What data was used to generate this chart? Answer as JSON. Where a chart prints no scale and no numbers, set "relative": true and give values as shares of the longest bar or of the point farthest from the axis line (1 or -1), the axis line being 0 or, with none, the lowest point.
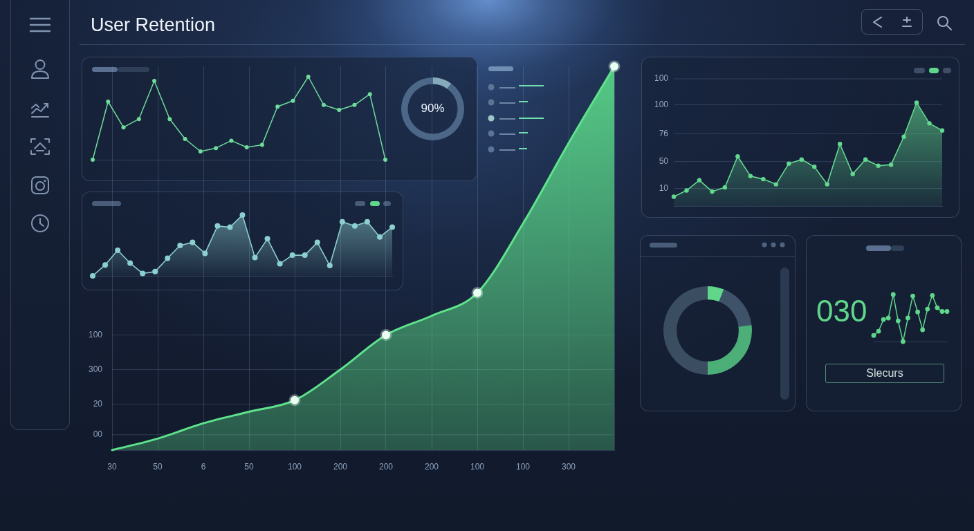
{
  "chart_data": [
    {
      "type": "area",
      "title": "User Retention",
      "relative": true,
      "categories": [
        "30",
        "50",
        "6",
        "50",
        "100",
        "200",
        "200",
        "200",
        "100",
        "100",
        "300",
        null
      ],
      "grid": "x",
      "ref_lines": [
        {
          "axis": "y",
          "value": 0.04
        },
        {
          "axis": "y",
          "value": 0.12
        },
        {
          "axis": "y",
          "value": 0.21
        },
        {
          "axis": "y",
          "value": 0.3
        }
      ],
      "annotations": [
        "00",
        "20",
        "300",
        "100"
      ],
      "series": [
        {
          "color": "#5ee38c",
          "values": [
            0,
            0.03,
            0.07,
            0.1,
            0.13,
            0.21,
            0.3,
            0.35,
            0.41,
            0.59,
            0.8,
            1
          ]
        },
        {
          "type": "scatter",
          "color": "#e9fff1",
          "values": [
            null,
            null,
            null,
            null,
            0.13,
            null,
            0.3,
            null,
            0.41,
            null,
            null,
            1
          ]
        }
      ]
    },
    {
      "type": "line",
      "relative": true,
      "marker": "circle",
      "categories": [
        null,
        null,
        null,
        null,
        null,
        null,
        null,
        null,
        null,
        null,
        null,
        null,
        null,
        null,
        null,
        null,
        null,
        null,
        null,
        null
      ],
      "series": [
        {
          "color": "#6fdc9a",
          "values": [
            0,
            0.7,
            0.39,
            0.49,
            0.95,
            0.49,
            0.25,
            0.1,
            0.14,
            0.23,
            0.15,
            0.18,
            0.64,
            0.71,
            1,
            0.66,
            0.6,
            0.66,
            0.79,
            0
          ]
        }
      ]
    },
    {
      "type": "donut",
      "categories": [
        null,
        null
      ],
      "values": [
        10,
        90
      ],
      "colors": [
        "#86aabb",
        "#4d6788"
      ],
      "annotations": [
        "90%"
      ]
    },
    {
      "type": "area",
      "relative": true,
      "marker": "circle",
      "categories": [
        null,
        null,
        null,
        null,
        null,
        null,
        null,
        null,
        null,
        null,
        null,
        null,
        null,
        null,
        null,
        null,
        null,
        null,
        null,
        null,
        null,
        null
      ],
      "ref_lines": [
        {
          "axis": "y",
          "value": 0.17
        },
        {
          "axis": "y",
          "value": 0.43
        },
        {
          "axis": "y",
          "value": 0.7
        },
        {
          "axis": "y",
          "value": 0.98
        },
        {
          "axis": "y",
          "value": 1.23
        }
      ],
      "annotations": [
        "10",
        "50",
        "76",
        "100",
        "100"
      ],
      "series": [
        {
          "color": "#63d98f",
          "values": [
            0.09,
            0.15,
            0.25,
            0.14,
            0.18,
            0.48,
            0.29,
            0.26,
            0.21,
            0.41,
            0.45,
            0.38,
            0.21,
            0.6,
            0.31,
            0.45,
            0.39,
            0.4,
            0.67,
            1,
            0.8,
            0.73
          ]
        }
      ]
    },
    {
      "type": "area",
      "relative": true,
      "marker": "circle",
      "categories": [
        null,
        null,
        null,
        null,
        null,
        null,
        null,
        null,
        null,
        null,
        null,
        null,
        null,
        null,
        null,
        null,
        null,
        null,
        null,
        null,
        null,
        null,
        null,
        null,
        null
      ],
      "series": [
        {
          "color": "#8ccfcf",
          "values": [
            0,
            0.18,
            0.42,
            0.21,
            0.04,
            0.07,
            0.29,
            0.5,
            0.55,
            0.37,
            0.82,
            0.8,
            1,
            0.3,
            0.61,
            0.2,
            0.34,
            0.34,
            0.55,
            0.17,
            0.89,
            0.82,
            0.89,
            0.64,
            0.8
          ]
        }
      ]
    },
    {
      "type": "donut",
      "categories": [
        null,
        null,
        null,
        null
      ],
      "values": [
        6,
        17,
        27,
        50
      ],
      "colors": [
        "#5fd68a",
        "#3e5369",
        "#4caf78",
        "#3a4d61"
      ]
    },
    {
      "type": "line",
      "relative": true,
      "marker": "circle",
      "title": "030",
      "annotations": [
        "Slecurs"
      ],
      "categories": [
        null,
        null,
        null,
        null,
        null,
        null,
        null,
        null,
        null,
        null,
        null,
        null,
        null,
        null,
        null,
        null
      ],
      "series": [
        {
          "color": "#5fd68a",
          "values": [
            0.13,
            0.22,
            0.47,
            0.5,
            1,
            0.44,
            0,
            0.5,
            0.97,
            0.63,
            0.25,
            0.69,
            0.98,
            0.72,
            0.64,
            0.64
          ]
        }
      ]
    }
  ]
}
